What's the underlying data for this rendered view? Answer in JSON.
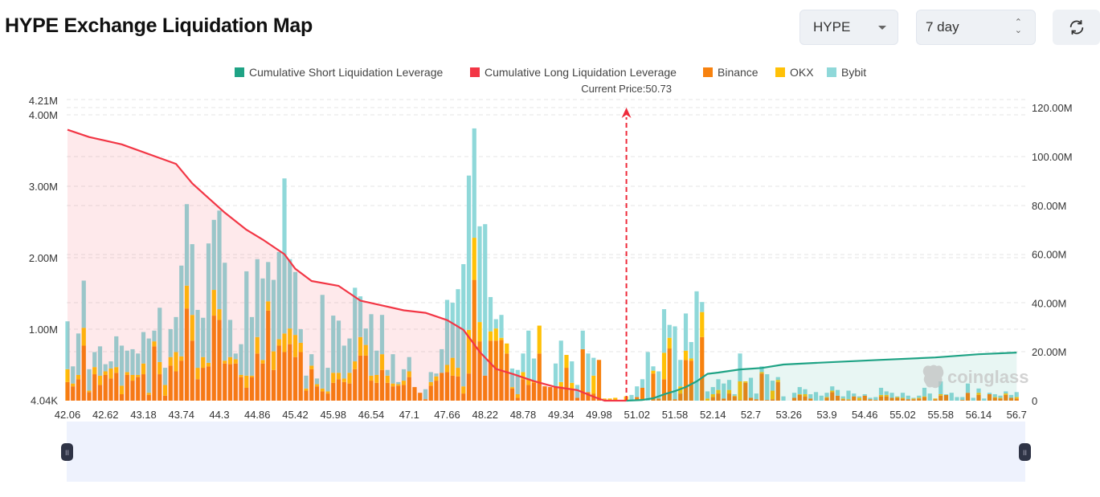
{
  "header": {
    "title": "HYPE Exchange Liquidation Map",
    "coin_select": "HYPE",
    "period_select": "7 day",
    "refresh_icon": "refresh-icon"
  },
  "watermark": "coinglass",
  "chart_data": {
    "type": "bar",
    "title": "",
    "legend": [
      "Cumulative Short Liquidation Leverage",
      "Cumulative Long Liquidation Leverage",
      "Binance",
      "OKX",
      "Bybit"
    ],
    "legend_placement": "top-center",
    "colors": {
      "short": "#1fa385",
      "long": "#f23645",
      "binance": "#f7820f",
      "okx": "#ffc107",
      "bybit": "#8fd8d9"
    },
    "x_tick_labels": [
      "42.06",
      "42.62",
      "43.18",
      "43.74",
      "44.3",
      "44.86",
      "45.42",
      "45.98",
      "46.54",
      "47.1",
      "47.66",
      "48.22",
      "48.78",
      "49.34",
      "49.98",
      "51.02",
      "51.58",
      "52.14",
      "52.7",
      "53.26",
      "53.9",
      "54.46",
      "55.02",
      "55.58",
      "56.14",
      "56.7"
    ],
    "bars_per_tick": 7,
    "left_axis": {
      "ticks": [
        "4.04K",
        "1.00M",
        "2.00M",
        "3.00M",
        "4.00M",
        "4.21M"
      ],
      "tick_values": [
        0.00404,
        1,
        2,
        3,
        4,
        4.21
      ],
      "unit": "M",
      "ylim": [
        0.00404,
        4.21
      ]
    },
    "right_axis": {
      "ticks": [
        "0",
        "20.00M",
        "40.00M",
        "60.00M",
        "80.00M",
        "100.00M",
        "120.00M"
      ],
      "tick_values": [
        0,
        20,
        40,
        60,
        80,
        100,
        120
      ],
      "unit": "M",
      "ylim": [
        0,
        122
      ]
    },
    "grid": true,
    "current_price": {
      "label": "Current Price:50.73",
      "value": 50.73
    },
    "series": [
      {
        "name": "Binance",
        "axis": "left",
        "values": [
          0.26,
          0.2,
          0.3,
          0.77,
          0.12,
          0.37,
          0.22,
          0.36,
          0.31,
          0.39,
          0.09,
          0.36,
          0.28,
          0.33,
          0.37,
          0.08,
          0.76,
          0.37,
          0.07,
          0.49,
          0.41,
          0.56,
          1.29,
          0.84,
          0.3,
          0.46,
          0.48,
          1.19,
          1.13,
          0.52,
          0.51,
          0.52,
          0.33,
          0.18,
          0.33,
          0.66,
          0.52,
          1.26,
          0.43,
          0.77,
          0.68,
          0.79,
          0.61,
          0.68,
          0.14,
          0.44,
          0.2,
          0.13,
          0.1,
          0.25,
          0.3,
          0.26,
          0.24,
          0.44,
          0.63,
          0.63,
          0.28,
          0.25,
          0.43,
          0.25,
          0.2,
          0.21,
          0.22,
          0.33,
          0.19,
          0.11,
          0.02,
          0.21,
          0.28,
          0.39,
          0.4,
          0.35,
          0.34,
          0.1,
          0.38,
          1.69,
          0.83,
          0.35,
          0.84,
          0.84,
          0.85,
          0.66,
          0.17,
          0.04,
          0.3,
          0.22,
          0.25,
          0.66,
          0.2,
          0.19,
          0.19,
          0.2,
          0.46,
          0.15,
          0.04,
          0.72,
          0.12,
          0.1,
          0.57,
          0.02,
          0.01,
          0.01,
          0.01,
          0.01,
          0.0,
          0.05,
          0.18,
          0.0,
          0.38,
          0.03,
          0.3,
          0.73,
          0.02,
          0.1,
          0.57,
          0.56,
          0.0,
          0.89,
          0.0,
          0.05,
          0.1,
          0.03,
          0.1,
          0.06,
          0.01,
          0.25,
          0.04,
          0.02,
          0.38,
          0.01,
          0.02,
          0.26,
          0.0,
          0.0,
          0.04,
          0.08,
          0.06,
          0.03,
          0.0,
          0.0,
          0.04,
          0.12,
          0.07,
          0.02,
          0.01,
          0.06,
          0.01,
          0.07,
          0.02,
          0.01,
          0.06,
          0.06,
          0.04,
          0.04,
          0.03,
          0.02,
          0.02,
          0.03,
          0.05,
          0.0,
          0.02,
          0.07,
          0.08,
          0.0,
          0.0,
          0.01,
          0.11,
          0.0,
          0.08,
          0.0,
          0.09,
          0.04,
          0.03,
          0.08,
          0.04,
          0.03
        ]
      },
      {
        "name": "OKX",
        "axis": "left",
        "values": [
          0.18,
          0.04,
          0.06,
          0.25,
          0.02,
          0.1,
          0.13,
          0.05,
          0.14,
          0.08,
          0.12,
          0.04,
          0.08,
          0.03,
          0.15,
          0.03,
          0.07,
          0.17,
          0.15,
          0.12,
          0.27,
          0.06,
          0.32,
          0.36,
          0.16,
          0.15,
          0.05,
          0.36,
          0.15,
          0.04,
          0.1,
          0.06,
          0.03,
          0.17,
          0.02,
          0.23,
          0.05,
          0.13,
          0.26,
          0.09,
          0.26,
          0.22,
          0.31,
          0.13,
          0.03,
          0.05,
          0.03,
          0.04,
          0.03,
          0.14,
          0.09,
          0.05,
          0.15,
          0.11,
          0.26,
          0.15,
          0.07,
          0.11,
          0.22,
          0.1,
          0.04,
          0.02,
          0.06,
          0.08,
          0.0,
          0.0,
          0.0,
          0.05,
          0.06,
          0.0,
          0.1,
          0.25,
          0.12,
          0.1,
          0.61,
          0.59,
          0.27,
          0.0,
          0.13,
          0.17,
          0.03,
          0.14,
          0.02,
          0.05,
          0.1,
          0.09,
          0.03,
          0.39,
          0.0,
          0.0,
          0.0,
          0.06,
          0.18,
          0.1,
          0.0,
          0.0,
          0.0,
          0.25,
          0.0,
          0.01,
          0.02,
          0.03,
          0.0,
          0.05,
          0.0,
          0.0,
          0.0,
          0.0,
          0.04,
          0.0,
          0.37,
          0.15,
          0.0,
          0.1,
          0.13,
          0.03,
          0.0,
          0.35,
          0.03,
          0.04,
          0.05,
          0.0,
          0.05,
          0.01,
          0.26,
          0.02,
          0.0,
          0.0,
          0.02,
          0.0,
          0.12,
          0.03,
          0.0,
          0.0,
          0.0,
          0.01,
          0.03,
          0.0,
          0.0,
          0.0,
          0.01,
          0.02,
          0.0,
          0.01,
          0.01,
          0.0,
          0.03,
          0.0,
          0.0,
          0.0,
          0.02,
          0.02,
          0.0,
          0.01,
          0.01,
          0.0,
          0.01,
          0.01,
          0.01,
          0.0,
          0.01,
          0.02,
          0.0,
          0.0,
          0.0,
          0.0,
          0.0,
          0.0,
          0.03,
          0.0,
          0.0,
          0.01,
          0.01,
          0.02,
          0.0,
          0.02
        ]
      },
      {
        "name": "Bybit",
        "axis": "left",
        "values": [
          0.67,
          0.24,
          0.58,
          0.66,
          0.3,
          0.21,
          0.41,
          0.1,
          0.1,
          0.43,
          0.56,
          0.3,
          0.36,
          0.3,
          0.44,
          0.76,
          0.15,
          0.76,
          0.24,
          0.39,
          0.49,
          1.27,
          1.14,
          0.99,
          0.81,
          0.55,
          1.67,
          0.98,
          1.38,
          1.37,
          0.52,
          0.08,
          0.43,
          1.46,
          0.82,
          1.09,
          1.14,
          0.55,
          1.0,
          1.22,
          2.17,
          0.97,
          0.88,
          0.19,
          0.18,
          0.16,
          0.08,
          1.31,
          0.33,
          0.8,
          0.73,
          0.46,
          0.48,
          1.03,
          0.57,
          0.23,
          0.86,
          0.34,
          0.55,
          0.08,
          0.41,
          0.03,
          0.16,
          0.2,
          0.0,
          0.0,
          0.14,
          0.14,
          0.04,
          0.33,
          0.91,
          0.77,
          1.1,
          1.71,
          2.16,
          1.53,
          1.34,
          2.12,
          0.48,
          0.13,
          0.32,
          0.0,
          0.26,
          0.34,
          0.26,
          0.67,
          0.31,
          0.0,
          0.0,
          0.0,
          0.33,
          0.58,
          0.0,
          0.3,
          0.18,
          0.26,
          0.54,
          0.25,
          0.0,
          0.0,
          0.0,
          0.0,
          0.0,
          0.0,
          0.08,
          0.15,
          0.12,
          0.68,
          0.06,
          0.38,
          0.61,
          0.18,
          1.02,
          0.37,
          0.52,
          0.23,
          1.53,
          0.14,
          0.1,
          0.1,
          0.15,
          0.21,
          0.14,
          0.02,
          0.39,
          0.0,
          0.28,
          0.08,
          0.08,
          0.36,
          0.14,
          0.04,
          0.06,
          0.0,
          0.07,
          0.1,
          0.07,
          0.06,
          0.12,
          0.07,
          0.06,
          0.06,
          0.08,
          0.03,
          0.12,
          0.04,
          0.02,
          0.02,
          0.02,
          0.04,
          0.1,
          0.05,
          0.07,
          0.01,
          0.07,
          0.05,
          0.01,
          0.03,
          0.12,
          0.1,
          0.0,
          0.18,
          0.01,
          0.11,
          0.05,
          0.04,
          0.13,
          0.04,
          0.06,
          0.03,
          0.02,
          0.04,
          0.03,
          0.03,
          0.04,
          0.07
        ]
      },
      {
        "name": "Cumulative Long Liquidation Leverage",
        "axis": "right",
        "type": "line",
        "points": [
          [
            0,
            111
          ],
          [
            4,
            108
          ],
          [
            10,
            105
          ],
          [
            20,
            97
          ],
          [
            23,
            89
          ],
          [
            26,
            83
          ],
          [
            29,
            77
          ],
          [
            33,
            70
          ],
          [
            36,
            66
          ],
          [
            40,
            60
          ],
          [
            42,
            54
          ],
          [
            45,
            49
          ],
          [
            50,
            47
          ],
          [
            54,
            41
          ],
          [
            58,
            39
          ],
          [
            62,
            37
          ],
          [
            66,
            36
          ],
          [
            70,
            33
          ],
          [
            73,
            29
          ],
          [
            76,
            20
          ],
          [
            79,
            13
          ],
          [
            82,
            11
          ],
          [
            86,
            8
          ],
          [
            90,
            5.6
          ],
          [
            94,
            4.3
          ],
          [
            97,
            1.6
          ],
          [
            99,
            0
          ],
          [
            103,
            0
          ]
        ]
      },
      {
        "name": "Cumulative Short Liquidation Leverage",
        "axis": "right",
        "type": "line",
        "points": [
          [
            103,
            0
          ],
          [
            106,
            0.3
          ],
          [
            108,
            1
          ],
          [
            110,
            2.6
          ],
          [
            112,
            3.9
          ],
          [
            114,
            5.6
          ],
          [
            116,
            7.9
          ],
          [
            118,
            11
          ],
          [
            120,
            11.5
          ],
          [
            124,
            12.8
          ],
          [
            128,
            13.4
          ],
          [
            132,
            14.8
          ],
          [
            140,
            15.7
          ],
          [
            150,
            16.7
          ],
          [
            160,
            17.7
          ],
          [
            168,
            19
          ],
          [
            175,
            19.7
          ]
        ]
      }
    ]
  }
}
